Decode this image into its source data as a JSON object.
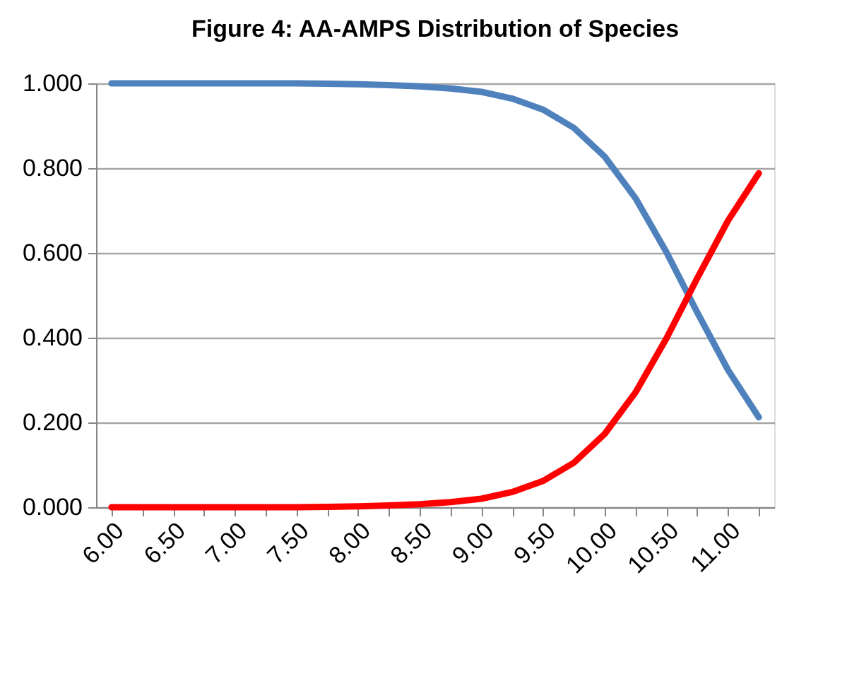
{
  "chart_data": {
    "type": "line",
    "title": "Figure 4: AA-AMPS Distribution of Species",
    "categories": [
      "6.00",
      null,
      "6.50",
      null,
      "7.00",
      null,
      "7.50",
      null,
      "8.00",
      null,
      "8.50",
      null,
      "9.00",
      null,
      "9.50",
      null,
      "10.00",
      null,
      "10.50",
      null,
      "11.00",
      null
    ],
    "series": [
      {
        "color": "#4f81bd",
        "values": [
          1.0,
          1.0,
          1.0,
          1.0,
          1.0,
          1.0,
          1.0,
          0.999,
          0.998,
          0.996,
          0.993,
          0.988,
          0.98,
          0.964,
          0.938,
          0.895,
          0.827,
          0.729,
          0.602,
          0.46,
          0.324,
          0.212
        ]
      },
      {
        "color": "#ff0000",
        "values": [
          0.0,
          0.0,
          0.0,
          0.0,
          0.0,
          0.0,
          0.0,
          0.001,
          0.002,
          0.004,
          0.007,
          0.012,
          0.02,
          0.036,
          0.062,
          0.105,
          0.173,
          0.271,
          0.398,
          0.54,
          0.676,
          0.788
        ]
      }
    ],
    "ylim": [
      0,
      1
    ],
    "yticks": [
      {
        "value": 0,
        "label": "0.000"
      },
      {
        "value": 0.2,
        "label": "0.200"
      },
      {
        "value": 0.4,
        "label": "0.400"
      },
      {
        "value": 0.6,
        "label": "0.600"
      },
      {
        "value": 0.8,
        "label": "0.800"
      },
      {
        "value": 1,
        "label": "1.000"
      }
    ],
    "grid": "y",
    "legend": false,
    "marker": "none",
    "line_style": "solid"
  }
}
